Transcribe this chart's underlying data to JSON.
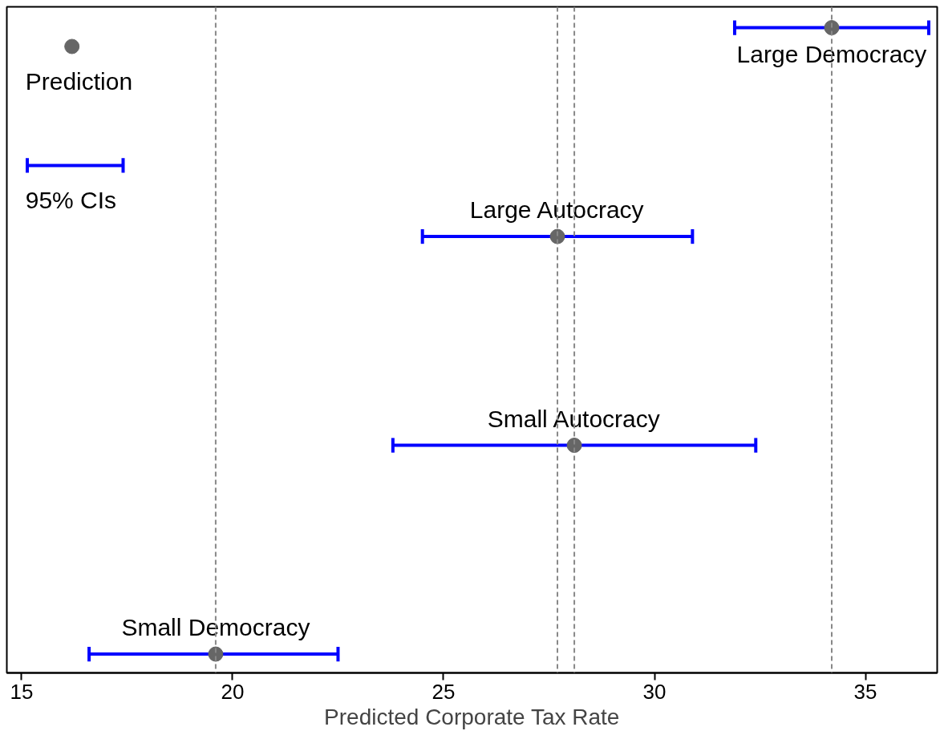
{
  "chart_data": {
    "type": "scatter",
    "orientation": "horizontal",
    "categories": [
      null,
      null,
      null,
      null
    ],
    "series": [
      {
        "name": "Prediction",
        "color": "#666666",
        "values": [
          34.2,
          27.7,
          28.1,
          19.6
        ],
        "errors": [
          [
            31.9,
            36.5
          ],
          [
            24.5,
            30.9
          ],
          [
            23.8,
            32.4
          ],
          [
            16.6,
            22.5
          ]
        ]
      }
    ],
    "xlabel": "Predicted Corporate Tax Rate",
    "xlim": [
      14.65,
      36.7
    ],
    "xticks": [
      15,
      20,
      25,
      30,
      35
    ],
    "ref_lines": [
      {
        "axis": "x",
        "value": 19.6,
        "color": "#888888",
        "line_style": "dashed"
      },
      {
        "axis": "x",
        "value": 27.7,
        "color": "#888888",
        "line_style": "dashed"
      },
      {
        "axis": "x",
        "value": 28.1,
        "color": "#888888",
        "line_style": "dashed"
      },
      {
        "axis": "x",
        "value": 34.2,
        "color": "#888888",
        "line_style": "dashed"
      }
    ],
    "annotations": [
      "95% CIs",
      {
        "text": "Large Democracy",
        "x": 34.2
      },
      {
        "text": "Large Autocracy",
        "x": 27.7
      },
      {
        "text": "Small Autocracy",
        "x": 28.1
      },
      {
        "text": "Small Democracy",
        "x": 19.6
      }
    ],
    "legend": "top left",
    "grid": false,
    "marker": "circle"
  }
}
